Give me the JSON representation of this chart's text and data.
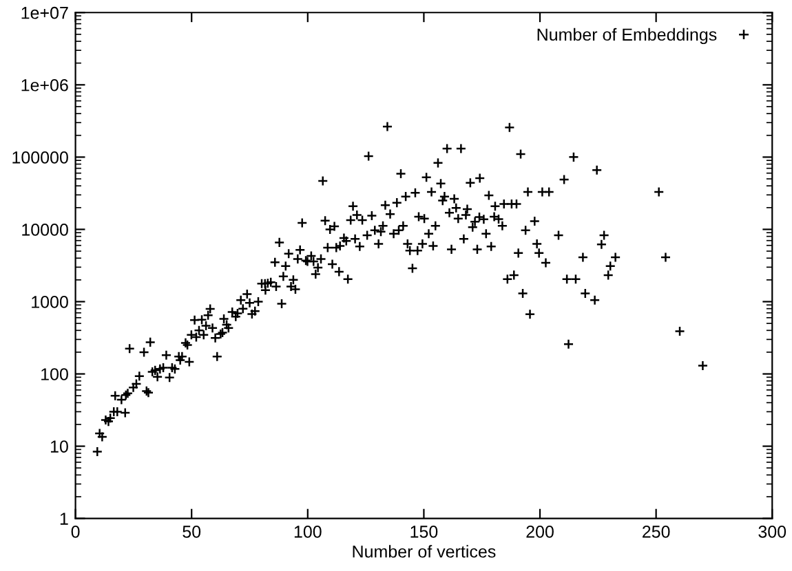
{
  "chart_data": {
    "type": "scatter",
    "xlabel": "Number of vertices",
    "legend": "top right",
    "marker": "cross",
    "log": "y",
    "grid": false,
    "xlim": [
      0,
      300
    ],
    "xticks": [
      0,
      50,
      100,
      150,
      200,
      250,
      300
    ],
    "ylim": [
      1,
      10000000
    ],
    "yticks": [
      1,
      10,
      100,
      1000,
      10000,
      100000,
      {
        "value": 1000000,
        "label": "1e+06"
      },
      {
        "value": 10000000,
        "label": "1e+07"
      }
    ],
    "series": [
      {
        "name": "Number of Embeddings",
        "color": "#000000",
        "x": [
          9.4,
          10.4,
          11.5,
          13,
          14.2,
          15,
          16.5,
          18,
          21.4,
          17.1,
          19.8,
          21.7,
          23.3,
          22.5,
          24.9,
          26.2,
          27.5,
          29.5,
          30.6,
          31.4,
          32.2,
          33.1,
          34.3,
          35.3,
          36.4,
          37.8,
          39.1,
          40.5,
          41.6,
          42.8,
          44.5,
          45.9,
          45.1,
          49,
          47.4,
          48.2,
          49.9,
          51.3,
          52,
          53.2,
          54.4,
          55.2,
          56.2,
          57.1,
          58,
          59,
          61,
          60.2,
          62.5,
          63.3,
          63.9,
          65.9,
          65.1,
          67.5,
          69,
          69.8,
          71.2,
          72.1,
          73.9,
          75,
          78.7,
          77.3,
          76,
          106.5,
          97.6,
          107.5,
          109.6,
          111.5,
          119.5,
          121.2,
          118.5,
          123.5,
          87.8,
          91.8,
          96.7,
          101.5,
          99.2,
          99.9,
          95.7,
          102.5,
          105.7,
          104.4,
          103.4,
          108.6,
          112.3,
          113.9,
          115.6,
          116.6,
          120.4,
          122.4,
          110.6,
          113.5,
          117.3,
          85.9,
          90.5,
          89.5,
          93.8,
          92.8,
          94.7,
          88.8,
          80.2,
          81.6,
          82.8,
          84.1,
          86.4,
          81.8,
          134.3,
          186.9,
          126.2,
          160,
          166,
          156.1,
          191.7,
          140.1,
          151.1,
          157.3,
          170,
          174.1,
          210.4,
          142.2,
          146.3,
          153.3,
          158.9,
          158.1,
          163.1,
          178,
          194.8,
          201,
          203.9,
          138.4,
          133.4,
          127.6,
          135.5,
          180.7,
          184.5,
          187.8,
          189.9,
          163.9,
          168.7,
          161,
          164.8,
          168.1,
          173.9,
          175.8,
          172,
          171,
          180.3,
          182.2,
          183.8,
          197.7,
          193.8,
          208,
          147.8,
          150.2,
          155,
          152.1,
          132.4,
          128.9,
          131.5,
          139.2,
          141.1,
          137,
          125.6,
          130.5,
          143,
          149.4,
          154,
          144,
          147.3,
          167.2,
          176.8,
          179,
          161.9,
          173,
          190.7,
          145.1,
          186,
          188.8,
          192.6,
          195.7,
          198.7,
          199.6,
          202.5,
          214.5,
          224.5,
          251.2,
          227.6,
          226.5,
          218.5,
          232.5,
          254.1,
          230.3,
          229.4,
          211.6,
          215.4,
          219.5,
          223.6,
          212.3,
          260.2,
          270.1
        ],
        "values": [
          8.4,
          15,
          13.5,
          23,
          22,
          24.5,
          30,
          30,
          29,
          50,
          44,
          51,
          224,
          54,
          65,
          73,
          93,
          200,
          58,
          55,
          275,
          107,
          112,
          91,
          117,
          122,
          182,
          89,
          122,
          117,
          174,
          174,
          155,
          147,
          269,
          251,
          347,
          555,
          324,
          400,
          562,
          347,
          465,
          649,
          794,
          433,
          174,
          315,
          357,
          372,
          578,
          433,
          480,
          720,
          620,
          690,
          1050,
          800,
          1270,
          960,
          1000,
          740,
          675,
          46800,
          12300,
          13200,
          10000,
          11000,
          20900,
          15800,
          13400,
          13400,
          6600,
          4600,
          5200,
          4300,
          3700,
          3600,
          3900,
          3600,
          3900,
          2950,
          2400,
          5600,
          5600,
          5900,
          7600,
          6900,
          7400,
          5800,
          3300,
          2600,
          2050,
          3500,
          3100,
          2240,
          2000,
          1620,
          1480,
          935,
          1780,
          1780,
          1800,
          1860,
          1620,
          1440,
          265000,
          257000,
          103000,
          131000,
          131000,
          83000,
          110000,
          59000,
          52500,
          43000,
          44000,
          51000,
          49000,
          28500,
          32000,
          33000,
          28500,
          25000,
          26500,
          29500,
          33000,
          33000,
          33000,
          23400,
          21600,
          15500,
          16300,
          20900,
          22500,
          22500,
          22500,
          19800,
          19100,
          17000,
          14100,
          15800,
          14800,
          13800,
          12800,
          10700,
          15000,
          13900,
          11200,
          13000,
          9700,
          8300,
          15000,
          14100,
          11200,
          8700,
          11200,
          9700,
          9300,
          9700,
          11200,
          8700,
          8300,
          6300,
          6300,
          6300,
          5900,
          5100,
          5100,
          7400,
          8700,
          5800,
          5300,
          5300,
          4700,
          2900,
          2050,
          2330,
          1300,
          670,
          6300,
          4700,
          3450,
          100000,
          66000,
          33000,
          8300,
          6200,
          4100,
          4100,
          4100,
          3100,
          2330,
          2050,
          2050,
          1300,
          1050,
          258,
          390,
          130
        ]
      }
    ]
  }
}
